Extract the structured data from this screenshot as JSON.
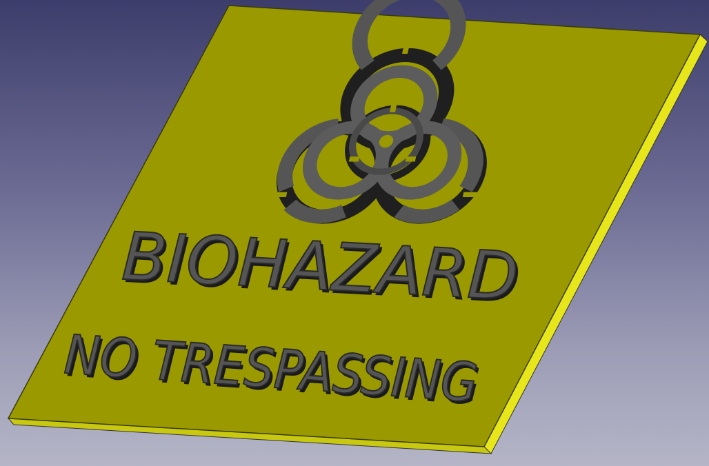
{
  "scene": {
    "background_colors": {
      "top": "#3d3d6b",
      "bottom": "#b5b5c7"
    },
    "plate_color": "#9a9a00",
    "plate_edge_color": "#e6e61a",
    "relief_color": "#4a4a4a",
    "relief_side_color": "#1a1a1a"
  },
  "sign": {
    "symbol": "biohazard-symbol",
    "title": "BIOHAZARD",
    "subtitle": "NO TRESPASSING"
  }
}
